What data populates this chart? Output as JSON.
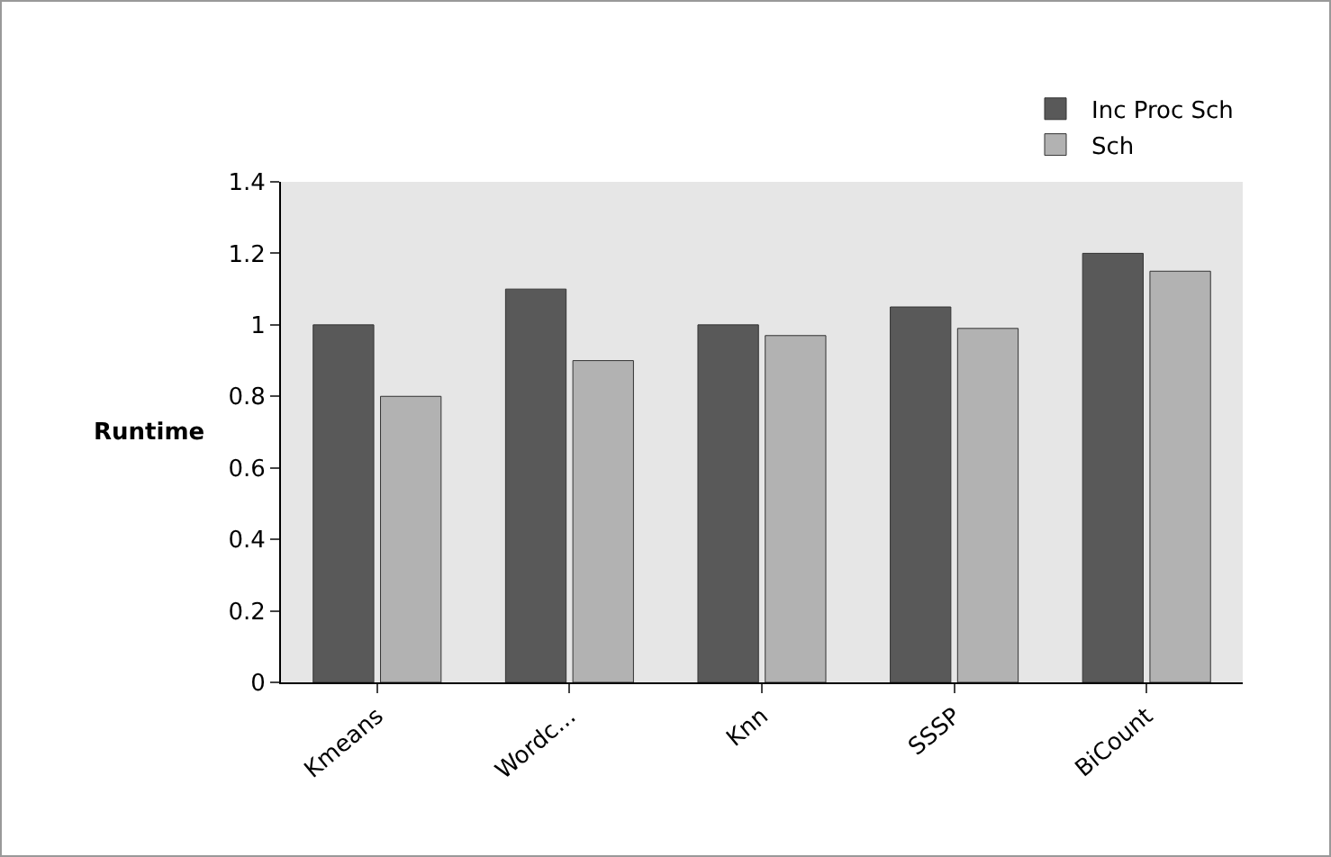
{
  "chart_data": {
    "type": "bar",
    "ylabel": "Runtime",
    "categories": [
      "Kmeans",
      "Wordc...",
      "Knn",
      "SSSP",
      "BiCount"
    ],
    "series": [
      {
        "name": "Inc Proc Sch",
        "color": "#595959",
        "values": [
          1.0,
          1.1,
          1.0,
          1.05,
          1.2
        ]
      },
      {
        "name": "Sch",
        "color": "#b2b2b2",
        "values": [
          0.8,
          0.9,
          0.97,
          0.99,
          1.15
        ]
      }
    ],
    "ylim": [
      0,
      1.4
    ],
    "yticks": [
      0,
      0.2,
      0.4,
      0.6,
      0.8,
      1,
      1.2,
      1.4
    ],
    "grid": false,
    "legend": "top right"
  }
}
